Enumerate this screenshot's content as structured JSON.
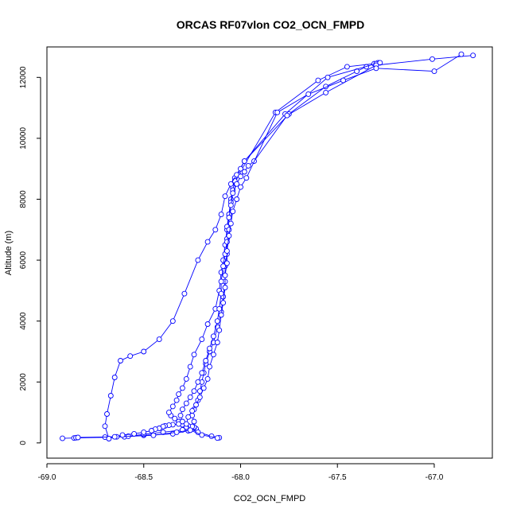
{
  "chart_data": {
    "type": "line",
    "title": "ORCAS RF07vlon CO2_OCN_FMPD",
    "xlabel": "CO2_OCN_FMPD",
    "ylabel": "Altitude (m)",
    "xlim": [
      -69.0,
      -66.7
    ],
    "ylim": [
      -500,
      13000
    ],
    "xticks": [
      -69.0,
      -68.5,
      -68.0,
      -67.5,
      -67.0
    ],
    "xtick_labels": [
      "-69.0",
      "-68.5",
      "-68.0",
      "-67.5",
      "-67.0"
    ],
    "yticks": [
      0,
      2000,
      4000,
      6000,
      8000,
      10000,
      12000
    ],
    "ytick_labels": [
      "0",
      "2000",
      "4000",
      "6000",
      "8000",
      "10000",
      "12000"
    ],
    "grid": false,
    "marker": "open-circle",
    "color": "#0000ff",
    "series": [
      {
        "x": [
          -68.92,
          -68.86,
          -68.6,
          -68.5,
          -68.35,
          -68.27,
          -68.25,
          -68.3,
          -68.32,
          -68.34,
          -68.36,
          -68.37,
          -68.35,
          -68.33,
          -68.32,
          -68.3,
          -68.28,
          -68.26,
          -68.24,
          -68.2,
          -68.17,
          -68.13,
          -68.11,
          -68.1,
          -68.09,
          -68.08,
          -68.07,
          -68.06,
          -68.05,
          -68.04,
          -68.03,
          -67.98,
          -67.75,
          -67.56,
          -67.4,
          -67.35
        ],
        "y": [
          150,
          160,
          200,
          250,
          300,
          400,
          500,
          600,
          700,
          800,
          900,
          1000,
          1200,
          1400,
          1600,
          1800,
          2100,
          2500,
          2900,
          3400,
          3900,
          4400,
          5000,
          5600,
          6000,
          6500,
          7000,
          7500,
          8000,
          8400,
          8700,
          9250,
          10800,
          11700,
          12200,
          12350
        ]
      },
      {
        "x": [
          -68.85,
          -68.7,
          -68.58,
          -68.5,
          -68.4,
          -68.3,
          -68.26,
          -68.24,
          -68.25,
          -68.24,
          -68.22,
          -68.21,
          -68.2,
          -68.19,
          -68.18,
          -68.16,
          -68.14,
          -68.12,
          -68.1,
          -68.09,
          -68.08,
          -68.08,
          -68.07,
          -68.07,
          -68.07,
          -68.06,
          -68.05,
          -68.04,
          -68.03,
          -68.01,
          -67.82,
          -67.6,
          -67.45,
          -67.31,
          -67.29
        ],
        "y": [
          170,
          190,
          220,
          280,
          350,
          430,
          500,
          700,
          900,
          1100,
          1400,
          1700,
          2000,
          2300,
          2600,
          3000,
          3300,
          3800,
          4300,
          4800,
          5300,
          5800,
          6200,
          6700,
          7100,
          7500,
          7900,
          8300,
          8600,
          8800,
          10850,
          11900,
          12350,
          12450,
          12480
        ]
      },
      {
        "x": [
          -68.84,
          -68.64,
          -68.45,
          -68.33,
          -68.26,
          -68.23,
          -68.24,
          -68.24,
          -68.25,
          -68.27,
          -68.29,
          -68.3,
          -68.32,
          -68.35,
          -68.37,
          -68.39,
          -68.4,
          -68.42,
          -68.44,
          -68.46,
          -68.5,
          -68.55,
          -68.61,
          -68.65,
          -68.68,
          -68.7,
          -68.69,
          -68.67,
          -68.65,
          -68.62,
          -68.57,
          -68.5,
          -68.42,
          -68.35,
          -68.29,
          -68.22,
          -68.17,
          -68.13,
          -68.1,
          -68.08,
          -68.05,
          -68.02,
          -68.0,
          -67.98,
          -67.77,
          -67.55,
          -67.3,
          -67.28
        ],
        "y": [
          180,
          200,
          250,
          350,
          420,
          470,
          500,
          520,
          540,
          560,
          580,
          600,
          620,
          600,
          580,
          560,
          540,
          480,
          450,
          400,
          350,
          300,
          260,
          200,
          140,
          550,
          950,
          1550,
          2150,
          2700,
          2850,
          3000,
          3400,
          4000,
          4900,
          6000,
          6600,
          7000,
          7500,
          8100,
          8500,
          8800,
          9000,
          9250,
          10800,
          12000,
          12450,
          12480
        ]
      },
      {
        "x": [
          -68.11,
          -68.15,
          -68.22,
          -68.28,
          -68.3,
          -68.31,
          -68.3,
          -68.28,
          -68.26,
          -68.24,
          -68.22,
          -68.2,
          -68.18,
          -68.16,
          -68.14,
          -68.12,
          -68.11,
          -68.1,
          -68.1,
          -68.09,
          -68.08,
          -68.07,
          -68.06,
          -68.06,
          -68.05,
          -68.04,
          -68.02,
          -68.0,
          -67.98,
          -67.96,
          -67.93,
          -67.76,
          -67.56,
          -67.3,
          -67.01,
          -66.8
        ],
        "y": [
          170,
          220,
          350,
          520,
          700,
          900,
          1100,
          1300,
          1500,
          1700,
          2000,
          2300,
          2700,
          3100,
          3500,
          4000,
          4400,
          4900,
          5300,
          5800,
          6200,
          6600,
          7000,
          7400,
          7800,
          8200,
          8500,
          8750,
          8900,
          9100,
          9250,
          10750,
          11500,
          12400,
          12600,
          12720
        ]
      },
      {
        "x": [
          -68.12,
          -68.2,
          -68.26,
          -68.28,
          -68.27,
          -68.25,
          -68.23,
          -68.21,
          -68.19,
          -68.17,
          -68.16,
          -68.14,
          -68.12,
          -68.11,
          -68.1,
          -68.09,
          -68.08,
          -68.08,
          -68.07,
          -68.07,
          -68.06,
          -68.05,
          -68.04,
          -68.02,
          -68.0,
          -67.97,
          -67.81,
          -67.65,
          -67.47,
          -67.3,
          -67.0,
          -66.86
        ],
        "y": [
          160,
          260,
          420,
          620,
          850,
          1050,
          1250,
          1500,
          1800,
          2100,
          2500,
          2900,
          3300,
          3700,
          4200,
          4600,
          5100,
          5500,
          5900,
          6300,
          6800,
          7200,
          7600,
          8000,
          8400,
          8700,
          10850,
          11450,
          11900,
          12300,
          12200,
          12760
        ]
      }
    ]
  }
}
